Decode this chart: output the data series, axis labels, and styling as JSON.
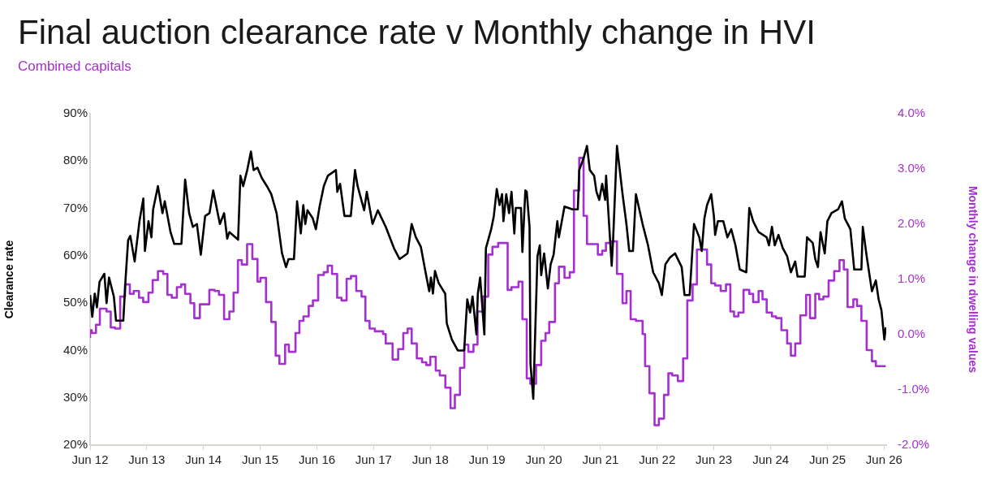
{
  "chart_data": {
    "type": "line",
    "title": "Final auction clearance rate v Monthly change in HVI",
    "subtitle": "Combined capitals",
    "ylabel": "Clearance rate",
    "y2label": "Monthly change in dwelling values",
    "xlim": [
      "2012-06-01",
      "2026-06-15"
    ],
    "xticks": [
      {
        "value": "2012-06-01",
        "label": "Jun 12"
      },
      {
        "value": "2013-06-01",
        "label": "Jun 13"
      },
      {
        "value": "2014-06-01",
        "label": "Jun 14"
      },
      {
        "value": "2015-06-01",
        "label": "Jun 15"
      },
      {
        "value": "2016-06-01",
        "label": "Jun 16"
      },
      {
        "value": "2017-06-01",
        "label": "Jun 17"
      },
      {
        "value": "2018-06-01",
        "label": "Jun 18"
      },
      {
        "value": "2019-06-01",
        "label": "Jun 19"
      },
      {
        "value": "2020-06-01",
        "label": "Jun 20"
      },
      {
        "value": "2021-06-01",
        "label": "Jun 21"
      },
      {
        "value": "2022-06-01",
        "label": "Jun 22"
      },
      {
        "value": "2023-06-01",
        "label": "Jun 23"
      },
      {
        "value": "2024-06-01",
        "label": "Jun 24"
      },
      {
        "value": "2025-06-01",
        "label": "Jun 25"
      },
      {
        "value": "2026-06-01",
        "label": "Jun 26"
      }
    ],
    "ylim": [
      20,
      90
    ],
    "yticks": [
      {
        "value": 20,
        "label": "20%"
      },
      {
        "value": 30,
        "label": "30%"
      },
      {
        "value": 40,
        "label": "40%"
      },
      {
        "value": 50,
        "label": "50%"
      },
      {
        "value": 60,
        "label": "60%"
      },
      {
        "value": 70,
        "label": "70%"
      },
      {
        "value": 80,
        "label": "80%"
      },
      {
        "value": 90,
        "label": "90%"
      }
    ],
    "y2lim": [
      -2,
      4
    ],
    "y2ticks": [
      {
        "value": -2,
        "label": "-2.0%"
      },
      {
        "value": -1,
        "label": "-1.0%"
      },
      {
        "value": 0,
        "label": "0.0%"
      },
      {
        "value": 1,
        "label": "1.0%"
      },
      {
        "value": 2,
        "label": "2.0%"
      },
      {
        "value": 3,
        "label": "3.0%"
      },
      {
        "value": 4,
        "label": "4.0%"
      }
    ],
    "grid": false,
    "legend": false,
    "line_style": "solid",
    "series": [
      {
        "type": "line",
        "color": "#000000",
        "x": [
          "2012-06-01",
          "2012-06-15",
          "2012-07-01",
          "2012-07-15",
          "2012-08-01",
          "2012-09-01",
          "2012-09-15",
          "2012-10-01",
          "2012-11-01",
          "2012-11-15",
          "2013-01-01",
          "2013-01-15",
          "2013-02-01",
          "2013-02-15",
          "2013-03-15",
          "2013-04-15",
          "2013-05-10",
          "2013-05-20",
          "2013-06-12",
          "2013-07-01",
          "2013-07-12",
          "2013-08-12",
          "2013-09-10",
          "2013-09-25",
          "2013-11-01",
          "2013-11-25",
          "2014-01-10",
          "2014-02-03",
          "2014-03-01",
          "2014-03-25",
          "2014-04-20",
          "2014-05-15",
          "2014-06-12",
          "2014-07-10",
          "2014-08-03",
          "2014-09-01",
          "2014-09-15",
          "2014-10-12",
          "2014-11-01",
          "2014-11-15",
          "2015-01-10",
          "2015-01-25",
          "2015-02-12",
          "2015-03-10",
          "2015-04-03",
          "2015-04-20",
          "2015-05-15",
          "2015-06-12",
          "2015-07-15",
          "2015-08-12",
          "2015-09-15",
          "2015-10-20",
          "2015-11-15",
          "2015-12-01",
          "2016-01-05",
          "2016-01-25",
          "2016-02-18",
          "2016-03-05",
          "2016-03-18",
          "2016-04-01",
          "2016-05-05",
          "2016-05-25",
          "2016-06-18",
          "2016-07-15",
          "2016-08-10",
          "2016-10-01",
          "2016-10-10",
          "2016-10-28",
          "2016-11-25",
          "2017-01-05",
          "2017-02-01",
          "2017-02-18",
          "2017-04-01",
          "2017-04-18",
          "2017-05-25",
          "2017-06-28",
          "2017-08-18",
          "2017-10-10",
          "2017-11-15",
          "2018-01-05",
          "2018-02-01",
          "2018-02-28",
          "2018-04-01",
          "2018-04-28",
          "2018-05-25",
          "2018-06-05",
          "2018-06-18",
          "2018-07-01",
          "2018-07-25",
          "2018-09-05",
          "2018-09-15",
          "2018-10-18",
          "2018-11-25",
          "2019-01-05",
          "2019-01-25",
          "2019-02-12",
          "2019-02-28",
          "2019-03-25",
          "2019-04-03",
          "2019-04-18",
          "2019-05-15",
          "2019-05-25",
          "2019-06-28",
          "2019-07-15",
          "2019-08-03",
          "2019-08-21",
          "2019-09-06",
          "2019-09-15",
          "2019-10-03",
          "2019-10-21",
          "2019-11-06",
          "2019-11-24",
          "2019-12-03",
          "2020-01-06",
          "2020-01-15",
          "2020-02-03",
          "2020-02-12",
          "2020-03-01",
          "2020-03-07",
          "2020-03-25",
          "2020-04-21",
          "2020-05-06",
          "2020-05-15",
          "2020-06-03",
          "2020-06-27",
          "2020-07-15",
          "2020-08-03",
          "2020-08-27",
          "2020-09-06",
          "2020-10-12",
          "2020-12-03",
          "2021-01-06",
          "2021-01-15",
          "2021-02-12",
          "2021-03-06",
          "2021-03-24",
          "2021-04-21",
          "2021-05-06",
          "2021-05-24",
          "2021-06-12",
          "2021-07-01",
          "2021-07-07",
          "2021-08-12",
          "2021-08-21",
          "2021-09-15",
          "2021-10-21",
          "2021-11-15",
          "2021-12-03",
          "2021-12-27",
          "2022-01-15",
          "2022-02-27",
          "2022-04-03",
          "2022-05-06",
          "2022-06-12",
          "2022-07-01",
          "2022-07-24",
          "2022-08-21",
          "2022-09-24",
          "2022-11-06",
          "2022-11-24",
          "2022-12-27",
          "2023-01-24",
          "2023-02-27",
          "2023-03-15",
          "2023-04-01",
          "2023-04-18",
          "2023-05-15",
          "2023-06-01",
          "2023-06-09",
          "2023-06-27",
          "2023-08-01",
          "2023-08-27",
          "2023-09-21",
          "2023-10-18",
          "2023-11-15",
          "2023-12-27",
          "2024-01-15",
          "2024-02-09",
          "2024-03-15",
          "2024-05-06",
          "2024-05-21",
          "2024-06-09",
          "2024-06-27",
          "2024-07-21",
          "2024-08-18",
          "2024-09-15",
          "2024-10-09",
          "2024-11-06",
          "2024-11-21",
          "2025-01-06",
          "2025-01-21",
          "2025-02-27",
          "2025-03-15",
          "2025-04-01",
          "2025-04-18",
          "2025-05-15",
          "2025-06-01",
          "2025-06-27",
          "2025-08-09",
          "2025-09-03",
          "2025-09-21",
          "2025-10-27",
          "2025-11-21",
          "2026-01-06",
          "2026-01-15",
          "2026-02-09",
          "2026-03-15",
          "2026-04-09",
          "2026-04-27",
          "2026-05-15",
          "2026-06-03",
          "2026-06-12"
        ],
        "values": [
          51.7,
          47.1,
          52.0,
          49.1,
          54.5,
          56.2,
          50.0,
          55.4,
          51.4,
          46.3,
          46.3,
          54.8,
          63.3,
          64.2,
          58.8,
          67.3,
          72.1,
          61.0,
          67.3,
          63.9,
          69.8,
          74.7,
          69.0,
          71.5,
          65.0,
          62.5,
          62.5,
          76.1,
          69.0,
          66.1,
          66.7,
          60.2,
          68.4,
          69.0,
          73.8,
          69.0,
          66.7,
          69.0,
          63.6,
          65.0,
          63.4,
          76.9,
          74.7,
          78.1,
          82.0,
          78.1,
          78.6,
          76.4,
          74.7,
          73.0,
          69.0,
          60.5,
          57.6,
          59.3,
          59.3,
          71.5,
          64.7,
          70.7,
          66.7,
          69.6,
          67.9,
          65.6,
          70.4,
          74.7,
          76.9,
          78.1,
          73.5,
          75.2,
          68.4,
          68.4,
          78.1,
          74.7,
          69.6,
          73.5,
          66.7,
          69.6,
          66.1,
          61.6,
          59.3,
          60.5,
          66.7,
          63.9,
          61.9,
          57.1,
          52.5,
          55.4,
          52.0,
          56.8,
          54.2,
          52.0,
          45.7,
          42.3,
          40.0,
          40.0,
          50.8,
          48.0,
          51.4,
          43.4,
          52.0,
          55.4,
          43.4,
          61.6,
          65.6,
          68.4,
          74.1,
          70.7,
          73.0,
          67.3,
          73.0,
          69.0,
          73.5,
          64.7,
          70.1,
          70.1,
          60.8,
          73.8,
          73.5,
          66.1,
          37.2,
          29.8,
          59.9,
          62.2,
          55.9,
          60.5,
          53.1,
          58.2,
          60.2,
          67.3,
          63.9,
          70.4,
          69.8,
          69.8,
          78.1,
          80.6,
          83.2,
          78.1,
          76.9,
          73.5,
          71.8,
          75.2,
          71.8,
          76.9,
          57.9,
          63.3,
          83.2,
          73.0,
          66.7,
          61.0,
          61.0,
          73.0,
          66.7,
          62.2,
          56.5,
          54.2,
          51.7,
          58.2,
          59.6,
          60.5,
          57.6,
          51.7,
          51.7,
          66.7,
          63.9,
          61.0,
          67.9,
          70.7,
          73.0,
          68.4,
          64.4,
          67.3,
          67.3,
          63.9,
          65.6,
          62.2,
          57.1,
          56.5,
          70.1,
          67.3,
          65.0,
          63.9,
          62.2,
          66.1,
          62.2,
          64.4,
          61.6,
          59.9,
          56.5,
          58.8,
          55.6,
          55.6,
          63.9,
          62.7,
          59.3,
          57.6,
          65.0,
          60.5,
          67.3,
          69.0,
          69.8,
          71.5,
          67.9,
          65.6,
          57.1,
          57.1,
          66.1,
          59.9,
          52.5,
          54.8,
          50.8,
          48.5,
          42.3,
          44.9
        ]
      },
      {
        "type": "step",
        "axis": "y2",
        "color": "#a52fd0",
        "x": [
          "2012-06-01",
          "2012-06-12",
          "2012-07-09",
          "2012-08-03",
          "2012-09-15",
          "2012-10-12",
          "2012-11-09",
          "2012-12-12",
          "2013-01-12",
          "2013-02-12",
          "2013-03-09",
          "2013-04-12",
          "2013-05-09",
          "2013-06-12",
          "2013-07-09",
          "2013-08-12",
          "2013-09-15",
          "2013-10-12",
          "2013-11-09",
          "2013-12-12",
          "2014-01-09",
          "2014-02-03",
          "2014-03-09",
          "2014-04-03",
          "2014-05-09",
          "2014-07-09",
          "2014-08-12",
          "2014-09-09",
          "2014-10-12",
          "2014-11-15",
          "2014-12-12",
          "2015-01-09",
          "2015-02-03",
          "2015-03-09",
          "2015-04-12",
          "2015-05-15",
          "2015-06-03",
          "2015-07-09",
          "2015-08-12",
          "2015-09-09",
          "2015-10-03",
          "2015-11-09",
          "2015-12-03",
          "2016-01-15",
          "2016-02-09",
          "2016-03-06",
          "2016-04-09",
          "2016-05-06",
          "2016-06-09",
          "2016-07-15",
          "2016-08-09",
          "2016-09-06",
          "2016-10-09",
          "2016-11-06",
          "2016-12-09",
          "2017-01-06",
          "2017-02-09",
          "2017-03-15",
          "2017-04-09",
          "2017-05-06",
          "2017-06-09",
          "2017-08-01",
          "2017-08-18",
          "2017-10-01",
          "2017-11-06",
          "2017-12-09",
          "2018-01-06",
          "2018-02-01",
          "2018-03-06",
          "2018-04-09",
          "2018-05-06",
          "2018-06-01",
          "2018-07-06",
          "2018-08-01",
          "2018-09-06",
          "2018-10-09",
          "2018-11-06",
          "2018-12-09",
          "2019-01-06",
          "2019-02-01",
          "2019-03-06",
          "2019-04-01",
          "2019-05-06",
          "2019-06-09",
          "2019-07-06",
          "2019-08-12",
          "2019-10-12",
          "2019-11-06",
          "2019-12-21",
          "2020-01-15",
          "2020-02-12",
          "2020-03-06",
          "2020-04-12",
          "2020-05-15",
          "2020-06-12",
          "2020-07-06",
          "2020-08-12",
          "2020-09-06",
          "2020-10-12",
          "2020-11-15",
          "2020-12-12",
          "2021-01-15",
          "2021-02-12",
          "2021-03-06",
          "2021-05-15",
          "2021-06-12",
          "2021-07-06",
          "2021-08-12",
          "2021-09-15",
          "2021-10-21",
          "2021-11-15",
          "2021-12-12",
          "2022-01-15",
          "2022-02-27",
          "2022-03-15",
          "2022-04-12",
          "2022-05-15",
          "2022-06-12",
          "2022-07-15",
          "2022-08-12",
          "2022-09-06",
          "2022-10-12",
          "2022-11-15",
          "2022-12-12",
          "2023-01-15",
          "2023-02-12",
          "2023-04-18",
          "2023-05-15",
          "2023-06-09",
          "2023-07-15",
          "2023-08-18",
          "2023-09-15",
          "2023-10-09",
          "2023-11-06",
          "2023-12-09",
          "2024-01-15",
          "2024-02-09",
          "2024-03-15",
          "2024-04-09",
          "2024-05-06",
          "2024-06-09",
          "2024-07-06",
          "2024-08-09",
          "2024-09-15",
          "2024-10-09",
          "2024-11-06",
          "2024-12-09",
          "2025-01-15",
          "2025-02-09",
          "2025-03-15",
          "2025-04-09",
          "2025-05-06",
          "2025-06-09",
          "2025-07-15",
          "2025-08-18",
          "2025-09-15",
          "2025-10-09",
          "2025-11-15",
          "2025-12-09",
          "2026-01-06",
          "2026-02-09",
          "2026-03-15",
          "2026-04-09",
          "2026-05-15",
          "2026-06-12"
        ],
        "values": [
          -0.06,
          0.08,
          0.03,
          0.18,
          0.47,
          0.42,
          0.13,
          0.11,
          0.69,
          0.91,
          0.74,
          0.79,
          0.67,
          0.59,
          0.76,
          0.99,
          1.15,
          1.1,
          0.72,
          0.67,
          0.86,
          0.91,
          0.74,
          0.57,
          0.3,
          0.55,
          0.81,
          0.79,
          0.72,
          0.28,
          0.42,
          0.76,
          1.35,
          1.27,
          1.64,
          1.37,
          0.96,
          1.03,
          0.59,
          0.23,
          -0.38,
          -0.53,
          -0.18,
          -0.31,
          0.03,
          0.25,
          0.33,
          0.52,
          0.62,
          1.08,
          1.13,
          1.25,
          1.1,
          0.67,
          0.62,
          1.01,
          1.06,
          0.79,
          0.69,
          0.25,
          0.11,
          0.06,
          0.01,
          -0.16,
          -0.45,
          -0.26,
          0.03,
          0.11,
          -0.16,
          -0.43,
          -0.5,
          -0.55,
          -0.4,
          -0.65,
          -0.74,
          -0.96,
          -1.33,
          -1.09,
          -0.6,
          -0.18,
          -0.31,
          -0.18,
          0.42,
          0.69,
          1.45,
          1.59,
          1.66,
          0.81,
          0.86,
          0.96,
          0.28,
          -0.79,
          -0.89,
          -0.55,
          -0.11,
          0.03,
          0.23,
          0.93,
          1.23,
          1.03,
          1.13,
          2.61,
          3.2,
          2.15,
          1.64,
          1.45,
          1.52,
          1.66,
          1.69,
          1.1,
          0.57,
          0.79,
          0.28,
          0.25,
          0.01,
          -0.57,
          -1.06,
          -1.64,
          -1.52,
          -1.09,
          -0.7,
          -0.74,
          -0.84,
          -0.43,
          0.62,
          0.91,
          1.54,
          1.27,
          0.93,
          0.89,
          0.79,
          0.91,
          0.42,
          0.33,
          0.4,
          0.81,
          0.74,
          0.59,
          0.79,
          0.64,
          0.4,
          0.33,
          0.3,
          0.08,
          -0.16,
          -0.38,
          -0.16,
          0.35,
          0.72,
          0.3,
          0.74,
          0.64,
          0.69,
          0.98,
          1.15,
          1.35,
          1.18,
          0.5,
          0.64,
          0.52,
          0.25,
          -0.28,
          -0.48,
          -0.57,
          -0.57
        ]
      }
    ]
  }
}
